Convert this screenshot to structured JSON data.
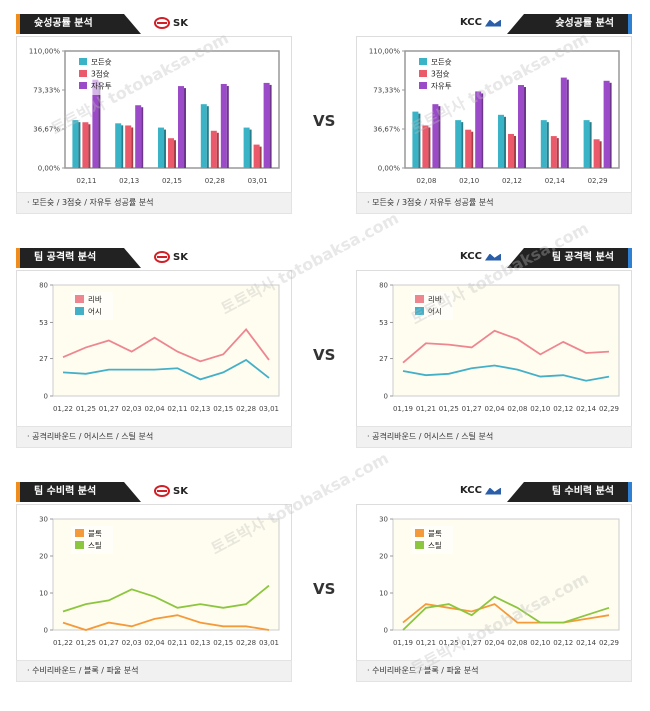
{
  "vs_label": "VS",
  "watermark": "토토박사 totobaksa.com",
  "teams": {
    "left": "SK",
    "right": "KCC"
  },
  "colors": {
    "win": "#3ab3c6",
    "three": "#ea5a6a",
    "free": "#9b4bc8",
    "rebound": "#ee8690",
    "assist": "#44b0c8",
    "block": "#f59a3a",
    "steal": "#8cc63e",
    "left_accent": "#f08c1c",
    "right_accent": "#2f7fd3"
  },
  "sections": [
    {
      "title": "슛성공률 분석",
      "footer": "모든슛 / 3점슛 / 자유투 성공률 분석"
    },
    {
      "title": "팀 공격력 분석",
      "footer": "공격리바운드 / 어시스트 / 스틸 분석"
    },
    {
      "title": "팀 수비력 분석",
      "footer": "수비리바운드 / 블록 / 파울 분석"
    }
  ],
  "chart_data": [
    {
      "id": "shooting-sk",
      "type": "bar",
      "team": "SK",
      "categories": [
        "02,11",
        "02,13",
        "02,15",
        "02,28",
        "03,01"
      ],
      "ylim": [
        0,
        110
      ],
      "yticks": [
        "0,00%",
        "36,67%",
        "73,33%",
        "110,00%"
      ],
      "ytick_values": [
        0,
        36.67,
        73.33,
        110
      ],
      "series": [
        {
          "name": "모든슛",
          "color_key": "win",
          "values": [
            45,
            42,
            38,
            60,
            38
          ]
        },
        {
          "name": "3점슛",
          "color_key": "three",
          "values": [
            43,
            40,
            28,
            35,
            22
          ]
        },
        {
          "name": "자유투",
          "color_key": "free",
          "values": [
            83,
            59,
            77,
            79,
            80
          ]
        }
      ]
    },
    {
      "id": "shooting-kcc",
      "type": "bar",
      "team": "KCC",
      "categories": [
        "02,08",
        "02,10",
        "02,12",
        "02,14",
        "02,29"
      ],
      "ylim": [
        0,
        110
      ],
      "yticks": [
        "0,00%",
        "36,67%",
        "73,33%",
        "110,00%"
      ],
      "ytick_values": [
        0,
        36.67,
        73.33,
        110
      ],
      "series": [
        {
          "name": "모든슛",
          "color_key": "win",
          "values": [
            53,
            45,
            50,
            45,
            45
          ]
        },
        {
          "name": "3점슛",
          "color_key": "three",
          "values": [
            40,
            36,
            32,
            30,
            27
          ]
        },
        {
          "name": "자유투",
          "color_key": "free",
          "values": [
            60,
            72,
            78,
            85,
            82
          ]
        }
      ]
    },
    {
      "id": "offense-sk",
      "type": "line",
      "team": "SK",
      "categories": [
        "01,22",
        "01,25",
        "01,27",
        "02,03",
        "02,04",
        "02,11",
        "02,13",
        "02,15",
        "02,28",
        "03,01"
      ],
      "ylim": [
        0,
        80
      ],
      "yticks": [
        "0",
        "27",
        "53",
        "80"
      ],
      "ytick_values": [
        0,
        27,
        53,
        80
      ],
      "series": [
        {
          "name": "리바",
          "color_key": "rebound",
          "values": [
            28,
            35,
            40,
            32,
            42,
            32,
            25,
            30,
            48,
            26
          ]
        },
        {
          "name": "어시",
          "color_key": "assist",
          "values": [
            17,
            16,
            19,
            19,
            19,
            20,
            12,
            17,
            26,
            13
          ]
        }
      ]
    },
    {
      "id": "offense-kcc",
      "type": "line",
      "team": "KCC",
      "categories": [
        "01,19",
        "01,21",
        "01,25",
        "01,27",
        "02,04",
        "02,08",
        "02,10",
        "02,12",
        "02,14",
        "02,29"
      ],
      "ylim": [
        0,
        80
      ],
      "yticks": [
        "0",
        "27",
        "53",
        "80"
      ],
      "ytick_values": [
        0,
        27,
        53,
        80
      ],
      "series": [
        {
          "name": "리바",
          "color_key": "rebound",
          "values": [
            24,
            38,
            37,
            35,
            47,
            41,
            30,
            39,
            31,
            32
          ]
        },
        {
          "name": "어시",
          "color_key": "assist",
          "values": [
            18,
            15,
            16,
            20,
            22,
            19,
            14,
            15,
            11,
            14
          ]
        }
      ]
    },
    {
      "id": "defense-sk",
      "type": "line",
      "team": "SK",
      "categories": [
        "01,22",
        "01,25",
        "01,27",
        "02,03",
        "02,04",
        "02,11",
        "02,13",
        "02,15",
        "02,28",
        "03,01"
      ],
      "ylim": [
        0,
        30
      ],
      "yticks": [
        "0",
        "10",
        "20",
        "30"
      ],
      "ytick_values": [
        0,
        10,
        20,
        30
      ],
      "series": [
        {
          "name": "블록",
          "color_key": "block",
          "values": [
            2,
            0,
            2,
            1,
            3,
            4,
            2,
            1,
            1,
            0
          ]
        },
        {
          "name": "스틸",
          "color_key": "steal",
          "values": [
            5,
            7,
            8,
            11,
            9,
            6,
            7,
            6,
            7,
            12
          ]
        }
      ]
    },
    {
      "id": "defense-kcc",
      "type": "line",
      "team": "KCC",
      "categories": [
        "01,19",
        "01,21",
        "01,25",
        "01,27",
        "02,04",
        "02,08",
        "02,10",
        "02,12",
        "02,14",
        "02,29"
      ],
      "ylim": [
        0,
        30
      ],
      "yticks": [
        "0",
        "10",
        "20",
        "30"
      ],
      "ytick_values": [
        0,
        10,
        20,
        30
      ],
      "series": [
        {
          "name": "블록",
          "color_key": "block",
          "values": [
            2,
            7,
            6,
            5,
            7,
            2,
            2,
            2,
            3,
            4
          ]
        },
        {
          "name": "스틸",
          "color_key": "steal",
          "values": [
            0,
            6,
            7,
            4,
            9,
            6,
            2,
            2,
            4,
            6
          ]
        }
      ]
    }
  ]
}
